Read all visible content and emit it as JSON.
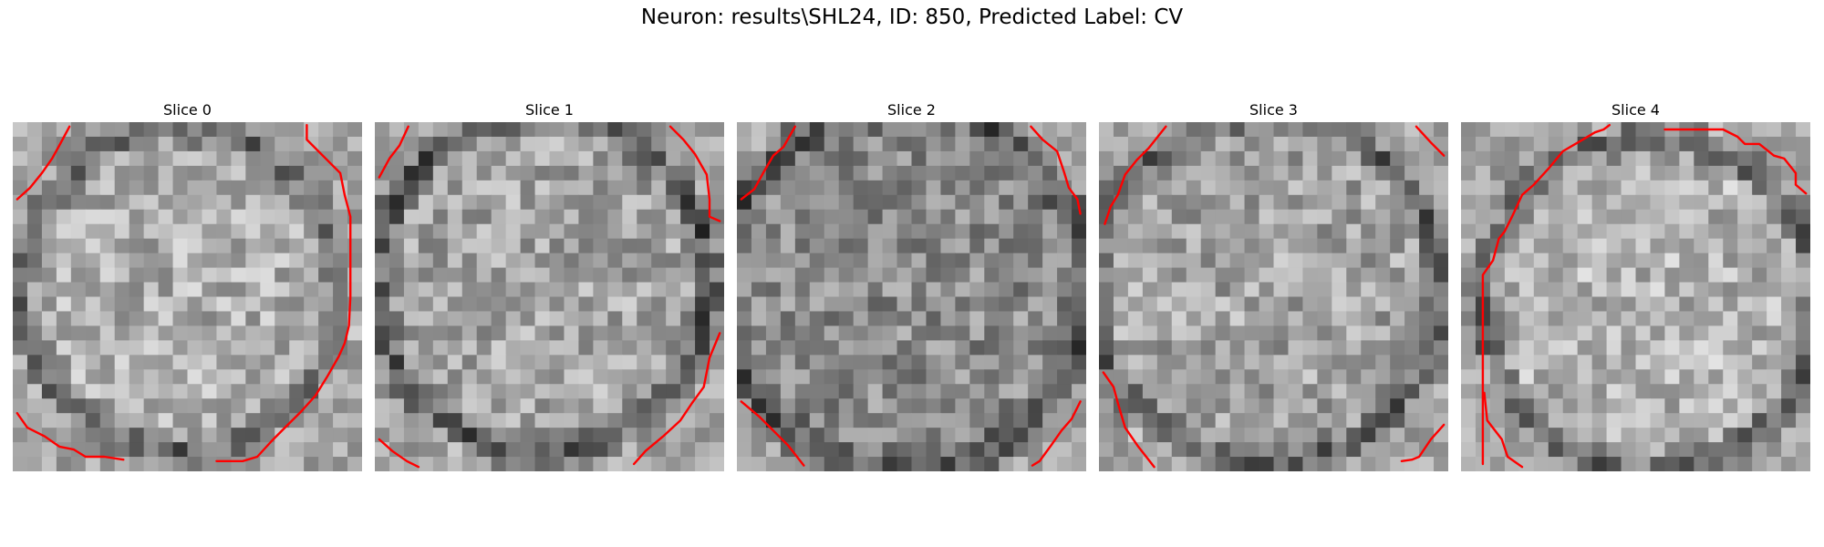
{
  "figure": {
    "title": "Neuron: results\\SHL24, ID: 850, Predicted Label: CV"
  },
  "panels": [
    {
      "title": "Slice 0"
    },
    {
      "title": "Slice 1"
    },
    {
      "title": "Slice 2"
    },
    {
      "title": "Slice 3"
    },
    {
      "title": "Slice 4"
    }
  ],
  "colors": {
    "contour": "#ff0000",
    "background": "#ffffff"
  },
  "image": {
    "colormap": "gray",
    "grid_size": 24
  }
}
